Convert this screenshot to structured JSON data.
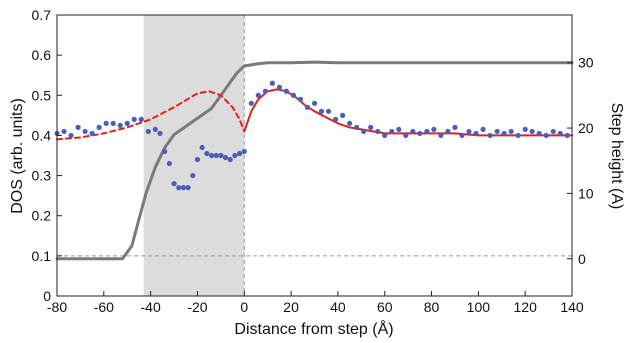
{
  "chart_data": {
    "type": "line",
    "title": "",
    "xlabel": "Distance from step (Å)",
    "ylabel": "DOS (arb. units)",
    "y2label": "Step height (A)",
    "xlim": [
      -80,
      140
    ],
    "ylim": [
      0,
      0.7
    ],
    "y2lim": [
      -5.7,
      37.3
    ],
    "xticks": [
      -80,
      -60,
      -40,
      -20,
      0,
      20,
      40,
      60,
      80,
      100,
      120,
      140
    ],
    "yticks": [
      0,
      0.1,
      0.2,
      0.3,
      0.4,
      0.5,
      0.6,
      0.7
    ],
    "y2ticks": [
      0,
      10,
      20,
      30
    ],
    "grid": false,
    "legend": "none",
    "shaded_region": {
      "x": [
        -43,
        0
      ],
      "color": "#dcdcdc"
    },
    "reference_lines": [
      {
        "axis": "x",
        "value": 0,
        "style": "dashed"
      },
      {
        "axis": "y",
        "value": 0.1,
        "style": "dashed"
      }
    ],
    "colors": {
      "points": "#4a5fb8",
      "fit": "#e02020",
      "step_height": "#7a7a7a",
      "shade": "#dcdcdc"
    },
    "series": [
      {
        "kind": "scatter",
        "axis": "left",
        "x": [
          -80,
          -77,
          -74,
          -71,
          -68,
          -65,
          -62,
          -59,
          -56,
          -53,
          -50,
          -47,
          -44,
          -41,
          -38,
          -36,
          -34,
          -32,
          -30,
          -28,
          -26,
          -24,
          -22,
          -20,
          -18,
          -16,
          -14,
          -12,
          -10,
          -8,
          -6,
          -4,
          -2,
          0,
          3,
          6,
          9,
          12,
          15,
          18,
          21,
          24,
          27,
          30,
          33,
          36,
          39,
          42,
          45,
          48,
          51,
          54,
          57,
          60,
          63,
          66,
          69,
          72,
          75,
          78,
          81,
          84,
          87,
          90,
          93,
          96,
          99,
          102,
          105,
          108,
          111,
          114,
          117,
          120,
          123,
          126,
          129,
          132,
          135,
          138
        ],
        "y": [
          0.405,
          0.41,
          0.4,
          0.42,
          0.41,
          0.405,
          0.42,
          0.43,
          0.43,
          0.425,
          0.43,
          0.44,
          0.44,
          0.41,
          0.415,
          0.405,
          0.36,
          0.33,
          0.28,
          0.27,
          0.27,
          0.27,
          0.3,
          0.34,
          0.37,
          0.355,
          0.35,
          0.35,
          0.35,
          0.345,
          0.34,
          0.35,
          0.355,
          0.36,
          0.48,
          0.5,
          0.51,
          0.53,
          0.52,
          0.51,
          0.5,
          0.49,
          0.47,
          0.48,
          0.46,
          0.46,
          0.44,
          0.45,
          0.43,
          0.42,
          0.41,
          0.42,
          0.41,
          0.4,
          0.41,
          0.415,
          0.4,
          0.41,
          0.405,
          0.41,
          0.415,
          0.4,
          0.41,
          0.42,
          0.4,
          0.41,
          0.405,
          0.415,
          0.4,
          0.41,
          0.405,
          0.41,
          0.4,
          0.415,
          0.41,
          0.405,
          0.4,
          0.41,
          0.405,
          0.4
        ]
      },
      {
        "kind": "line",
        "style": "dashed",
        "axis": "left",
        "x": [
          -80,
          -70,
          -60,
          -50,
          -40,
          -30,
          -20,
          -15,
          -10,
          -5,
          -2,
          0
        ],
        "y": [
          0.39,
          0.395,
          0.405,
          0.42,
          0.44,
          0.47,
          0.505,
          0.51,
          0.5,
          0.47,
          0.44,
          0.41
        ]
      },
      {
        "kind": "line",
        "style": "solid",
        "axis": "left",
        "x": [
          0,
          3,
          6,
          10,
          14,
          18,
          22,
          26,
          30,
          35,
          40,
          45,
          50,
          55,
          60,
          70,
          80,
          90,
          100,
          110,
          120,
          130,
          140
        ],
        "y": [
          0.41,
          0.46,
          0.49,
          0.51,
          0.515,
          0.51,
          0.495,
          0.475,
          0.46,
          0.445,
          0.43,
          0.42,
          0.415,
          0.41,
          0.405,
          0.405,
          0.405,
          0.405,
          0.4,
          0.4,
          0.4,
          0.4,
          0.4
        ]
      },
      {
        "kind": "line",
        "style": "solid",
        "axis": "right",
        "x": [
          -80,
          -60,
          -52,
          -48,
          -45,
          -42,
          -38,
          -34,
          -30,
          -26,
          -22,
          -18,
          -14,
          -10,
          -6,
          -3,
          0,
          5,
          10,
          20,
          30,
          40,
          60,
          80,
          100,
          120,
          140
        ],
        "y": [
          0,
          0,
          0,
          2,
          6,
          10,
          14,
          17,
          19,
          20,
          21,
          22,
          23,
          25,
          27,
          28.5,
          29.5,
          29.8,
          30,
          30,
          30.1,
          30,
          30,
          30,
          30,
          30,
          30
        ]
      }
    ]
  }
}
